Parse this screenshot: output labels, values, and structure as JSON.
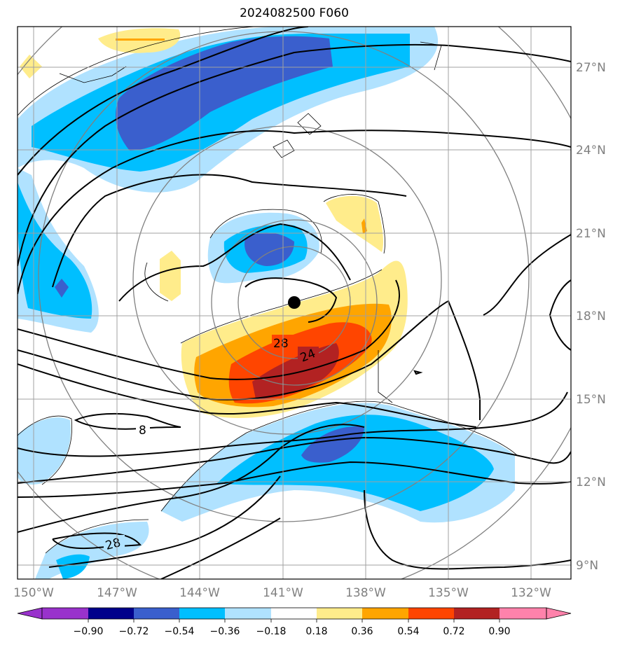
{
  "title": "2024082500 F060",
  "axes": {
    "x_ticks": [
      "150°W",
      "147°W",
      "144°W",
      "141°W",
      "138°W",
      "135°W",
      "132°W"
    ],
    "y_ticks": [
      "27°N",
      "24°N",
      "21°N",
      "18°N",
      "15°N",
      "12°N",
      "9°N"
    ]
  },
  "colorbar": {
    "labels": [
      "−0.90",
      "−0.72",
      "−0.54",
      "−0.36",
      "−0.18",
      "0.18",
      "0.36",
      "0.54",
      "0.72",
      "0.90"
    ],
    "colors": [
      "#9932cc",
      "#00008b",
      "#3a5fcd",
      "#00bfff",
      "#b0e2ff",
      "#ffffff",
      "#ffec8b",
      "#ffa500",
      "#ff4500",
      "#b22222",
      "#ff82ab"
    ]
  },
  "contour_labels": [
    "28",
    "24",
    "8",
    "28"
  ],
  "storm_center": {
    "lon": -140.7,
    "lat": 18.5
  }
}
